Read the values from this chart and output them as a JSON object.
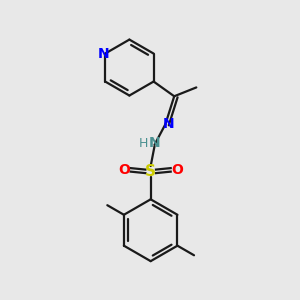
{
  "background_color": "#e8e8e8",
  "bond_color": "#1a1a1a",
  "N_color": "#0000ff",
  "O_color": "#ff0000",
  "S_color": "#cccc00",
  "NH_color": "#4a9090",
  "line_width": 1.6,
  "figsize": [
    3.0,
    3.0
  ],
  "dpi": 100,
  "xlim": [
    0,
    10
  ],
  "ylim": [
    0,
    10
  ]
}
